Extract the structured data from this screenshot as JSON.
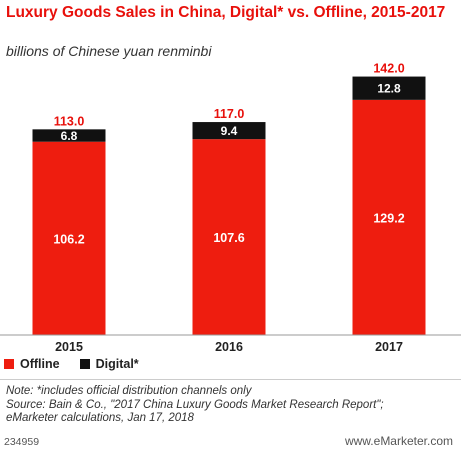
{
  "header": {
    "title": "Luxury Goods Sales in China, Digital* vs. Offline, 2015-2017",
    "subtitle": "billions of Chinese yuan renminbi"
  },
  "colors": {
    "offline": "#ee1d0f",
    "digital": "#111111",
    "total_label": "#e8100b"
  },
  "chart_data": {
    "type": "bar",
    "stacked": true,
    "categories": [
      "2015",
      "2016",
      "2017"
    ],
    "series": [
      {
        "name": "Offline",
        "values": [
          106.2,
          107.6,
          129.2
        ]
      },
      {
        "name": "Digital*",
        "values": [
          6.8,
          9.4,
          12.8
        ]
      }
    ],
    "totals": [
      113.0,
      117.0,
      142.0
    ],
    "value_labels": {
      "offline": [
        "106.2",
        "107.6",
        "129.2"
      ],
      "digital": [
        "6.8",
        "9.4",
        "12.8"
      ],
      "totals": [
        "113.0",
        "117.0",
        "142.0"
      ]
    },
    "ylim": [
      0,
      150
    ],
    "grid": false,
    "legend_position": "bottom-left"
  },
  "legend": {
    "offline_label": "Offline",
    "digital_label": "Digital*"
  },
  "notes": {
    "line1": "Note: *includes official distribution channels only",
    "line2": "Source: Bain & Co., \"2017 China Luxury Goods Market Research Report\";",
    "line3": "eMarketer calculations, Jan 17, 2018"
  },
  "footer": {
    "chart_id": "234959",
    "brand": "www.eMarketer.com"
  }
}
